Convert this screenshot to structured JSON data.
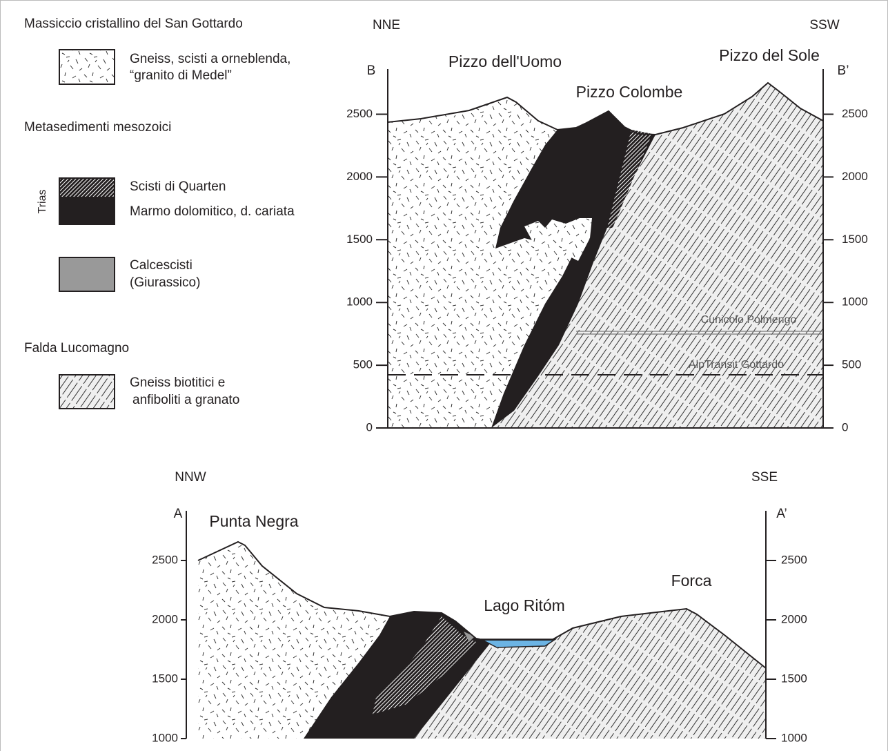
{
  "legend": {
    "groups": [
      {
        "title": "Massiccio cristallino del San Gottardo",
        "items": [
          {
            "lines": [
              "Gneiss, scisti a orneblenda,",
              "“granito di Medel”"
            ]
          }
        ]
      },
      {
        "title": "Metasedimenti mesozoici",
        "label": "Trias",
        "items": [
          {
            "lines": [
              "Scisti di Quarten"
            ]
          },
          {
            "lines": [
              "Marmo dolomitico, d. cariata"
            ]
          },
          {
            "lines": [
              "Calcescisti",
              "(Giurassico)"
            ]
          }
        ]
      },
      {
        "title": "Falda Lucomagno",
        "items": [
          {
            "lines": [
              "Gneiss biotitici e",
              "anfiboliti a granato"
            ]
          }
        ]
      }
    ]
  },
  "section_b": {
    "direction_left": "NNE",
    "direction_right": "SSW",
    "end_left": "B",
    "end_right": "B’",
    "peaks": [
      "Pizzo dell'Uomo",
      "Pizzo Colombe",
      "Pizzo del Sole"
    ],
    "tunnels": [
      "Cunicolo Polmengo",
      "AlpTransit Gottardo"
    ],
    "yticks": [
      0,
      500,
      1000,
      1500,
      2000,
      2500
    ]
  },
  "section_a": {
    "direction_left": "NNW",
    "direction_right": "SSE",
    "end_left": "A",
    "end_right": "A’",
    "labels": [
      "Punta Negra",
      "Lago Ritóm",
      "Forca"
    ],
    "yticks": [
      1000,
      1500,
      2000,
      2500
    ]
  }
}
